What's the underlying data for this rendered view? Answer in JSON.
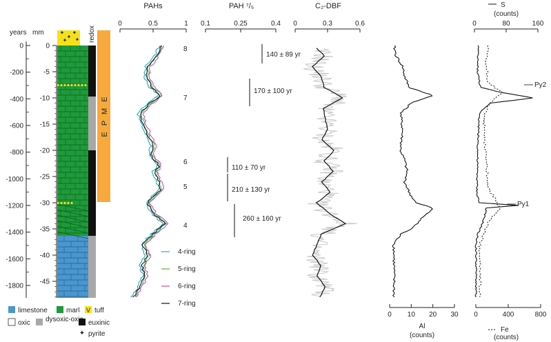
{
  "chart_data": {
    "type": "line",
    "axes_labels": {
      "years": "years",
      "mm": "mm",
      "redox": "redox",
      "pahs": "PAHs",
      "pah_ratio": "PAH ⁷/₅",
      "c2dbf": "C₂-DBF",
      "s": "S",
      "s_units": "(counts)",
      "al": "Al",
      "al_units": "(counts)",
      "fe": "Fe",
      "fe_units": "(counts)"
    },
    "years_ticks": [
      "0",
      "-200",
      "-400",
      "-600",
      "-800",
      "-1000",
      "-1200",
      "-1400",
      "-1600",
      "-1800"
    ],
    "years_values": [
      0,
      -200,
      -400,
      -600,
      -800,
      -1000,
      -1200,
      -1400,
      -1600,
      -1800
    ],
    "mm_ticks": [
      "0",
      "-5",
      "-10",
      "-15",
      "-20",
      "-25",
      "-30",
      "-35",
      "-40",
      "-45"
    ],
    "mm_values": [
      0,
      -5,
      -10,
      -15,
      -20,
      -25,
      -30,
      -35,
      -40,
      -45
    ],
    "pahs_ticks": [
      "0",
      "0.5",
      "1"
    ],
    "ratio_ticks": [
      "0.1",
      "0.25",
      "0.4"
    ],
    "c2dbf_ticks": [
      "0",
      "0.3",
      "0.6"
    ],
    "s_ticks": [
      "0",
      "80",
      "160"
    ],
    "al_ticks": [
      "0",
      "10",
      "20",
      "30"
    ],
    "fe_ticks": [
      "0",
      "400",
      "800"
    ],
    "epme_label": "E P M E",
    "peak_labels": [
      "8",
      "7",
      "6",
      "5",
      "4"
    ],
    "durations": [
      "140 ± 89 yr",
      "170 ± 100 yr",
      "110 ± 70 yr",
      "210 ± 130 yr",
      "260 ± 160 yr"
    ],
    "pyrite_labels": [
      "Py2",
      "Py1"
    ],
    "pah_series": [
      {
        "name": "4-ring",
        "color": "#1aa9c9",
        "offset": -0.03
      },
      {
        "name": "5-ring",
        "color": "#4dbb3a",
        "offset": 0.015
      },
      {
        "name": "6-ring",
        "color": "#c050b8",
        "offset": 0.04
      },
      {
        "name": "7-ring",
        "color": "#111111",
        "offset": 0
      }
    ],
    "pah_profile": [
      {
        "mm": 0,
        "v": 0.62
      },
      {
        "mm": -2,
        "v": 0.55
      },
      {
        "mm": -4,
        "v": 0.42
      },
      {
        "mm": -6,
        "v": 0.4
      },
      {
        "mm": -8,
        "v": 0.48
      },
      {
        "mm": -9.5,
        "v": 0.62
      },
      {
        "mm": -11,
        "v": 0.45
      },
      {
        "mm": -13,
        "v": 0.3
      },
      {
        "mm": -15,
        "v": 0.35
      },
      {
        "mm": -17,
        "v": 0.42
      },
      {
        "mm": -19,
        "v": 0.5
      },
      {
        "mm": -21,
        "v": 0.46
      },
      {
        "mm": -23,
        "v": 0.6
      },
      {
        "mm": -24,
        "v": 0.52
      },
      {
        "mm": -26,
        "v": 0.58
      },
      {
        "mm": -27.5,
        "v": 0.62
      },
      {
        "mm": -30,
        "v": 0.42
      },
      {
        "mm": -32,
        "v": 0.5
      },
      {
        "mm": -34,
        "v": 0.68
      },
      {
        "mm": -36,
        "v": 0.5
      },
      {
        "mm": -38,
        "v": 0.35
      },
      {
        "mm": -40,
        "v": 0.42
      },
      {
        "mm": -42,
        "v": 0.33
      },
      {
        "mm": -44,
        "v": 0.38
      },
      {
        "mm": -46,
        "v": 0.3
      },
      {
        "mm": -48,
        "v": 0.2
      }
    ],
    "c2dbf_smooth": [
      {
        "mm": -0.5,
        "v": 0.2
      },
      {
        "mm": -2,
        "v": 0.27
      },
      {
        "mm": -4,
        "v": 0.16
      },
      {
        "mm": -6,
        "v": 0.24
      },
      {
        "mm": -8,
        "v": 0.27
      },
      {
        "mm": -10,
        "v": 0.44
      },
      {
        "mm": -12,
        "v": 0.26
      },
      {
        "mm": -14,
        "v": 0.28
      },
      {
        "mm": -16,
        "v": 0.3
      },
      {
        "mm": -18,
        "v": 0.25
      },
      {
        "mm": -20,
        "v": 0.36
      },
      {
        "mm": -22,
        "v": 0.27
      },
      {
        "mm": -24,
        "v": 0.35
      },
      {
        "mm": -26,
        "v": 0.25
      },
      {
        "mm": -28,
        "v": 0.32
      },
      {
        "mm": -30,
        "v": 0.2
      },
      {
        "mm": -32,
        "v": 0.31
      },
      {
        "mm": -34,
        "v": 0.47
      },
      {
        "mm": -36,
        "v": 0.24
      },
      {
        "mm": -38,
        "v": 0.2
      },
      {
        "mm": -40,
        "v": 0.16
      },
      {
        "mm": -42,
        "v": 0.24
      },
      {
        "mm": -44,
        "v": 0.2
      },
      {
        "mm": -46,
        "v": 0.28
      },
      {
        "mm": -48,
        "v": 0.23
      }
    ],
    "al_profile": [
      {
        "mm": 0,
        "v": 2
      },
      {
        "mm": -2,
        "v": 3
      },
      {
        "mm": -4,
        "v": 6
      },
      {
        "mm": -6,
        "v": 7
      },
      {
        "mm": -8,
        "v": 9
      },
      {
        "mm": -9.5,
        "v": 20
      },
      {
        "mm": -11,
        "v": 10
      },
      {
        "mm": -13,
        "v": 5
      },
      {
        "mm": -16,
        "v": 6
      },
      {
        "mm": -20,
        "v": 5
      },
      {
        "mm": -22,
        "v": 7
      },
      {
        "mm": -24,
        "v": 8
      },
      {
        "mm": -26,
        "v": 7
      },
      {
        "mm": -28,
        "v": 9
      },
      {
        "mm": -30,
        "v": 12
      },
      {
        "mm": -31,
        "v": 20
      },
      {
        "mm": -33,
        "v": 15
      },
      {
        "mm": -35,
        "v": 10
      },
      {
        "mm": -36,
        "v": 5
      },
      {
        "mm": -38,
        "v": 2
      },
      {
        "mm": -42,
        "v": 2
      },
      {
        "mm": -48,
        "v": 2
      }
    ],
    "s_profile": [
      {
        "mm": 0,
        "v": 10
      },
      {
        "mm": -2,
        "v": 8
      },
      {
        "mm": -5,
        "v": 8
      },
      {
        "mm": -8,
        "v": 15
      },
      {
        "mm": -9,
        "v": 70
      },
      {
        "mm": -10,
        "v": 148
      },
      {
        "mm": -11,
        "v": 40
      },
      {
        "mm": -13,
        "v": 12
      },
      {
        "mm": -20,
        "v": 8
      },
      {
        "mm": -28,
        "v": 6
      },
      {
        "mm": -30,
        "v": 12
      },
      {
        "mm": -30.5,
        "v": 110
      },
      {
        "mm": -31,
        "v": 30
      },
      {
        "mm": -34,
        "v": 20
      },
      {
        "mm": -36,
        "v": 8
      },
      {
        "mm": -38,
        "v": 4
      },
      {
        "mm": -48,
        "v": 4
      }
    ],
    "fe_profile": [
      {
        "mm": 0,
        "v": 150
      },
      {
        "mm": -3,
        "v": 120
      },
      {
        "mm": -7,
        "v": 150
      },
      {
        "mm": -9,
        "v": 320
      },
      {
        "mm": -10,
        "v": 250
      },
      {
        "mm": -11,
        "v": 160
      },
      {
        "mm": -14,
        "v": 100
      },
      {
        "mm": -18,
        "v": 110
      },
      {
        "mm": -22,
        "v": 130
      },
      {
        "mm": -27,
        "v": 150
      },
      {
        "mm": -31,
        "v": 300
      },
      {
        "mm": -33,
        "v": 180
      },
      {
        "mm": -35,
        "v": 120
      },
      {
        "mm": -38,
        "v": 50
      },
      {
        "mm": -48,
        "v": 50
      }
    ],
    "ranges": {
      "mm": [
        0,
        -48
      ],
      "pahs": [
        0,
        1
      ],
      "ratio": [
        0.1,
        0.4
      ],
      "c2dbf": [
        0,
        0.6
      ],
      "s": [
        0,
        160
      ],
      "al": [
        0,
        30
      ],
      "fe": [
        0,
        800
      ]
    }
  },
  "legend": {
    "limestone": "limestone",
    "marl": "marl",
    "tuff": "tuff",
    "tuff_symbol": "V",
    "oxic": "oxic",
    "dysoxic": "dysoxic-oxic",
    "euxinic": "euxinic",
    "pyrite": "pyrite",
    "pyrite_symbol": "✦"
  },
  "colors": {
    "limestone": "#4a96cf",
    "marl": "#1f9a3a",
    "tuff": "#f5e11b",
    "epme": "#f7a93b",
    "dysoxic": "#a8a8a8",
    "euxinic": "#111111",
    "c2dbf_raw": "#c8c8c8"
  }
}
